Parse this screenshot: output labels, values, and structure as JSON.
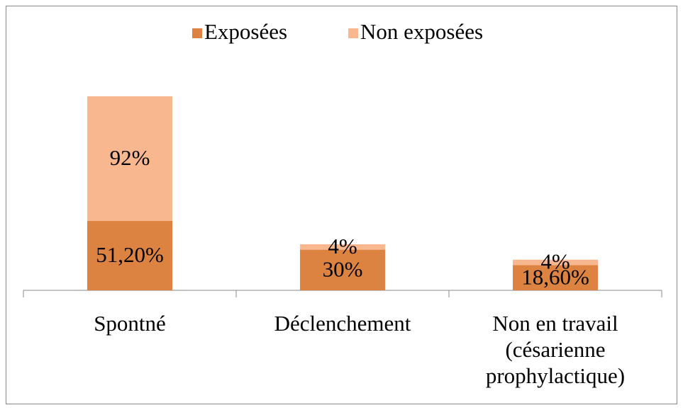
{
  "chart_data": {
    "type": "stacked_bar",
    "categories": [
      "Spontné",
      "Déclenchement",
      "Non en travail\n(césarienne\nprophylactique)"
    ],
    "series": [
      {
        "name": "Exposées",
        "color": "#dd8341",
        "values": [
          51.2,
          30,
          18.6
        ],
        "value_labels": [
          "51,20%",
          "30%",
          "18,60%"
        ]
      },
      {
        "name": "Non exposées",
        "color": "#f9b78f",
        "values": [
          92,
          4,
          4
        ],
        "value_labels": [
          "92%",
          "4%",
          "4%"
        ]
      }
    ],
    "legend": "top"
  }
}
